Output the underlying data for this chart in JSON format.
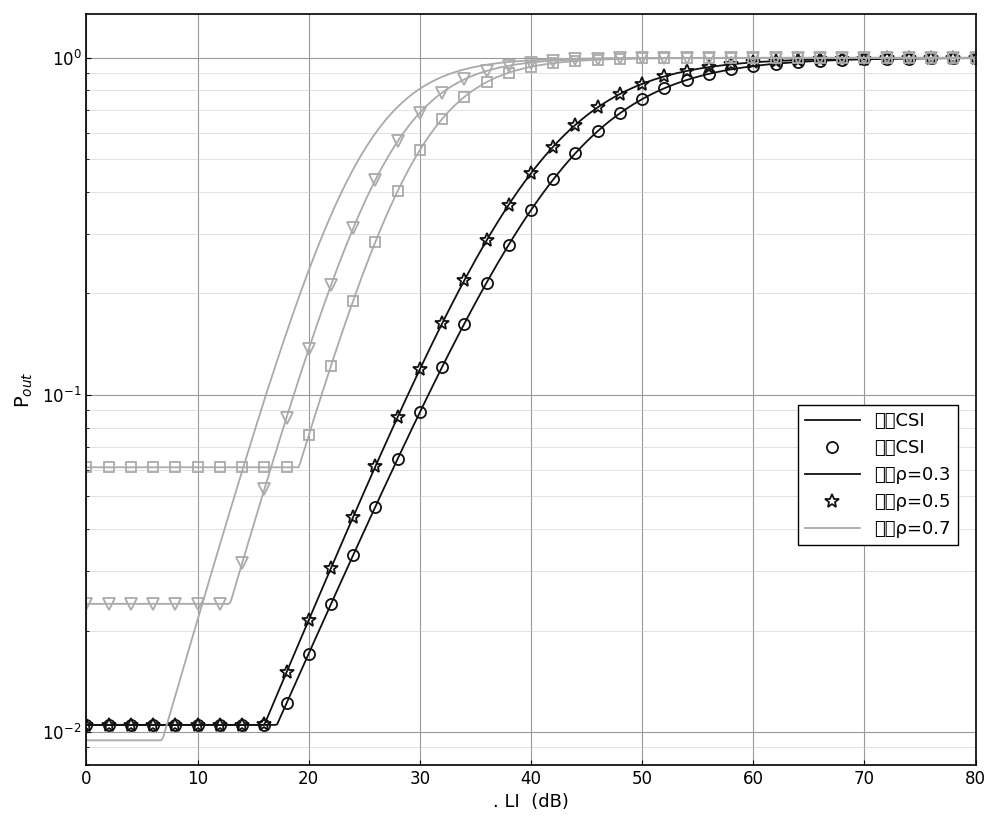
{
  "xlabel": ". LI  (dB)",
  "xlim": [
    0,
    80
  ],
  "x_ticks": [
    0,
    10,
    20,
    30,
    40,
    50,
    60,
    70,
    80
  ],
  "legend_labels": [
    "完整CSI",
    "部分CSI",
    "固定ρ=0.3",
    "固定ρ=0.5",
    "固定ρ=0.7"
  ],
  "colors": [
    "#111111",
    "#111111",
    "#aaaaaa",
    "#aaaaaa",
    "#aaaaaa"
  ],
  "linestyles": [
    "-",
    "-",
    "-",
    "-",
    "-"
  ],
  "markers": [
    "o",
    "*",
    "s",
    "v",
    ""
  ],
  "marker_sizes": [
    8,
    10,
    7,
    8,
    0
  ],
  "floor_rho03": 0.061,
  "floor_rho05": 0.024,
  "floor_base": 0.0105,
  "curve1_x0": 43.5,
  "curve1_scale": 5.8,
  "curve2_x0": 41.0,
  "curve2_scale": 5.5,
  "curve3_x0": 29.5,
  "curve3_scale": 3.8,
  "curve4_x0": 27.0,
  "curve4_scale": 3.8,
  "curve5_x0": 24.5,
  "curve5_scale": 3.8,
  "ymin": 0.008,
  "ymax": 1.35
}
